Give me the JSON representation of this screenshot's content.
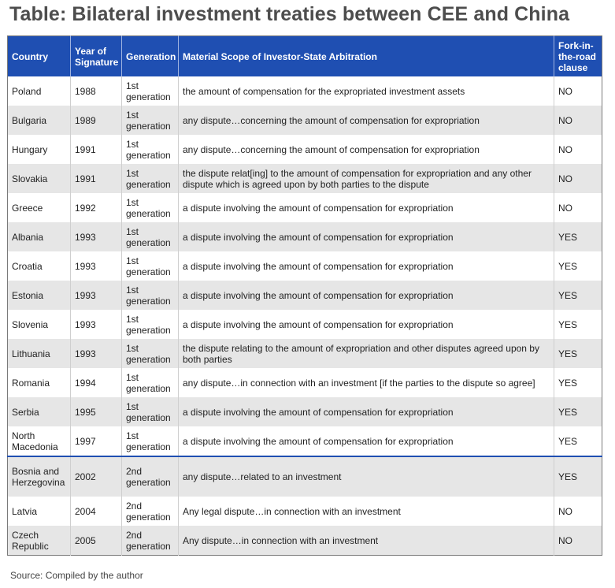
{
  "title": "Table: Bilateral investment treaties between CEE and China",
  "headers": {
    "country": "Country",
    "year": "Year of Signature",
    "generation": "Generation",
    "scope": "Material Scope of Investor-State Arbitration",
    "fork": "Fork-in-the-road clause"
  },
  "rows": [
    {
      "country": "Poland",
      "year": "1988",
      "generation": "1st generation",
      "scope": "the amount of compensation for the expropriated investment assets",
      "fork": "NO"
    },
    {
      "country": "Bulgaria",
      "year": "1989",
      "generation": "1st generation",
      "scope": "any dispute…concerning the amount of compensation for expropriation",
      "fork": "NO"
    },
    {
      "country": "Hungary",
      "year": "1991",
      "generation": "1st generation",
      "scope": "any dispute…concerning the amount of compensation for expropriation",
      "fork": "NO"
    },
    {
      "country": "Slovakia",
      "year": "1991",
      "generation": "1st generation",
      "scope": "the dispute relat[ing] to the amount of compensation for expropriation and any other dispute which is agreed upon by both parties to the dispute",
      "fork": "NO"
    },
    {
      "country": "Greece",
      "year": "1992",
      "generation": "1st generation",
      "scope": "a dispute involving the amount of compensation for expropriation",
      "fork": "NO"
    },
    {
      "country": "Albania",
      "year": "1993",
      "generation": "1st generation",
      "scope": "a dispute involving the amount of compensation for expropriation",
      "fork": "YES"
    },
    {
      "country": "Croatia",
      "year": "1993",
      "generation": "1st generation",
      "scope": "a dispute involving the amount of compensation for expropriation",
      "fork": "YES"
    },
    {
      "country": "Estonia",
      "year": "1993",
      "generation": "1st generation",
      "scope": "a dispute involving the amount of compensation for expropriation",
      "fork": "YES"
    },
    {
      "country": "Slovenia",
      "year": "1993",
      "generation": "1st generation",
      "scope": "a dispute involving the amount of compensation for expropriation",
      "fork": "YES"
    },
    {
      "country": "Lithuania",
      "year": "1993",
      "generation": "1st generation",
      "scope": "the dispute relating to the amount of expropriation and other disputes agreed upon by both parties",
      "fork": "YES"
    },
    {
      "country": "Romania",
      "year": "1994",
      "generation": "1st generation",
      "scope": "any dispute…in connection with an investment [if the parties to the dispute so agree]",
      "fork": "YES"
    },
    {
      "country": "Serbia",
      "year": "1995",
      "generation": "1st generation",
      "scope": "a dispute involving the amount of compensation for expropriation",
      "fork": "YES"
    },
    {
      "country": "North Macedonia",
      "year": "1997",
      "generation": "1st generation",
      "scope": "a dispute involving the amount of compensation for expropriation",
      "fork": "YES"
    },
    {
      "country": "Bosnia and Herzegovina",
      "year": "2002",
      "generation": "2nd generation",
      "scope": "any dispute…related to an investment",
      "fork": "YES"
    },
    {
      "country": "Latvia",
      "year": "2004",
      "generation": "2nd generation",
      "scope": "Any legal dispute…in connection with an investment",
      "fork": "NO"
    },
    {
      "country": "Czech Republic",
      "year": "2005",
      "generation": "2nd generation",
      "scope": "Any dispute…in connection with an investment",
      "fork": "NO"
    }
  ],
  "source": "Source: Compiled by the author",
  "colors": {
    "header_bg": "#1f4fb2",
    "stripe": "#e6e6e6",
    "title": "#4d4d4d"
  }
}
